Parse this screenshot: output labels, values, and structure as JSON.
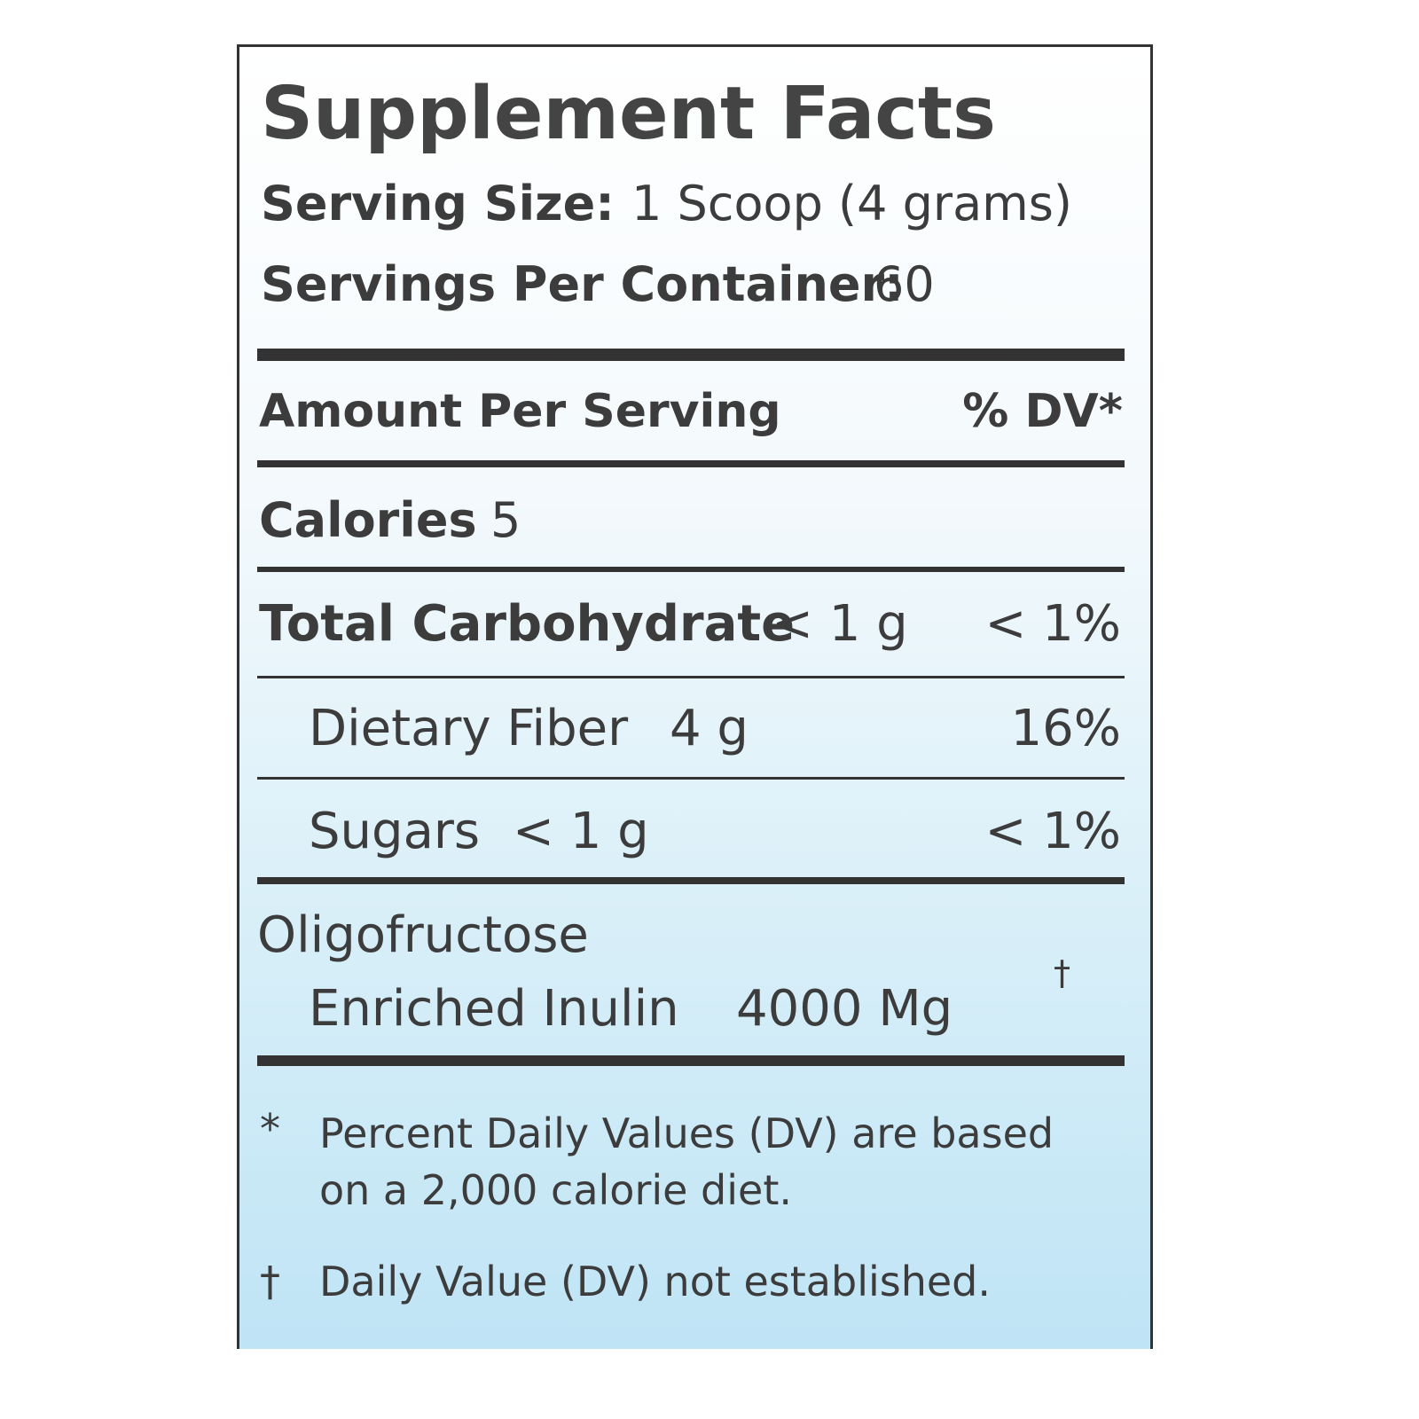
{
  "title": "Supplement Facts",
  "serving_size": {
    "label": "Serving Size:",
    "value": "1 Scoop (4 grams)"
  },
  "servings_per_container": {
    "label": "Servings Per Container:",
    "value": "60"
  },
  "header": {
    "amount": "Amount Per Serving",
    "dv": "% DV*"
  },
  "calories": {
    "label": "Calories",
    "value": "5"
  },
  "rows": [
    {
      "name": "Total Carbohydrate",
      "amount": "< 1 g",
      "dv": "< 1%"
    },
    {
      "name": "Dietary Fiber",
      "amount": "4 g",
      "dv": "16%"
    },
    {
      "name": "Sugars",
      "amount": "< 1 g",
      "dv": "< 1%"
    }
  ],
  "blend": {
    "name_line1": "Oligofructose",
    "name_line2": "Enriched Inulin",
    "amount": "4000 Mg",
    "dv": "†"
  },
  "footnotes": [
    {
      "symbol": "*",
      "text": "Percent Daily Values (DV) are based on a 2,000 calorie diet."
    },
    {
      "symbol": "†",
      "text": "Daily Value (DV) not established."
    }
  ]
}
